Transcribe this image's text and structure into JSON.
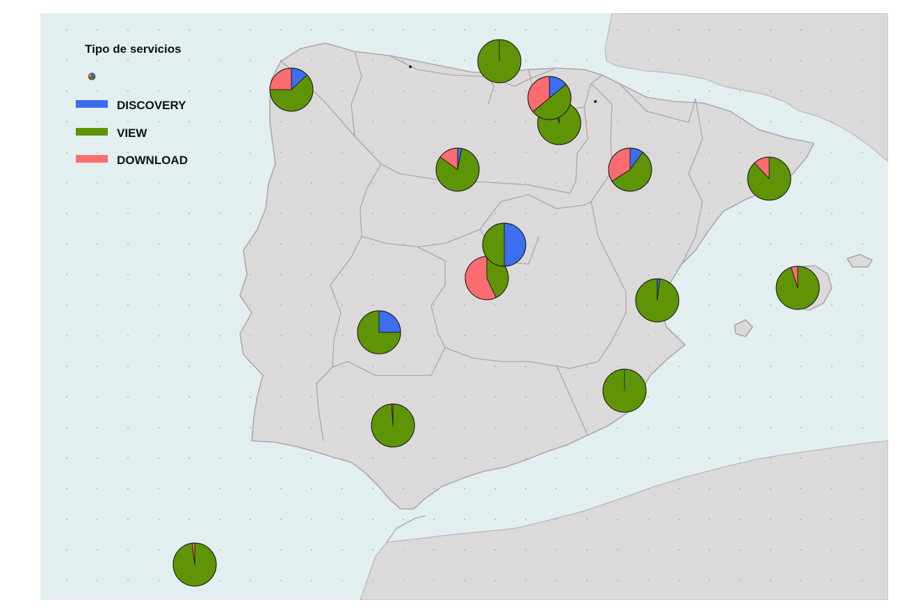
{
  "legend": {
    "title": "Tipo de servicios",
    "items": [
      {
        "label": "DISCOVERY",
        "color": "#3d6ef0"
      },
      {
        "label": "VIEW",
        "color": "#5f9407"
      },
      {
        "label": "DOWNLOAD",
        "color": "#fb6c70"
      }
    ]
  },
  "colors": {
    "sea": "#e2eeef",
    "land": "#dcd9da",
    "border": "#a7a7a9",
    "DISCOVERY": "#3d6ef0",
    "VIEW": "#5f9407",
    "DOWNLOAD": "#fb6c70"
  },
  "chart_data": {
    "type": "pie",
    "series_order": [
      "DISCOVERY",
      "VIEW",
      "DOWNLOAD"
    ],
    "pies": [
      {
        "id": "galicia",
        "shares": [
          0.13,
          0.62,
          0.25
        ]
      },
      {
        "id": "asturias",
        "shares": [
          0.0,
          1.0,
          0.0
        ]
      },
      {
        "id": "pais-vasco",
        "shares": [
          0.14,
          0.5,
          0.36
        ]
      },
      {
        "id": "navarra-rioja",
        "shares": [
          0.0,
          0.96,
          0.04
        ]
      },
      {
        "id": "castilla-leon",
        "shares": [
          0.03,
          0.82,
          0.15
        ]
      },
      {
        "id": "aragon",
        "shares": [
          0.1,
          0.56,
          0.34
        ]
      },
      {
        "id": "cataluna",
        "shares": [
          0.0,
          0.88,
          0.12
        ]
      },
      {
        "id": "madrid",
        "shares": [
          0.5,
          0.5,
          0.0
        ]
      },
      {
        "id": "castilla-la-mancha",
        "shares": [
          0.0,
          0.43,
          0.57
        ]
      },
      {
        "id": "extremadura",
        "shares": [
          0.25,
          0.75,
          0.0
        ]
      },
      {
        "id": "comunidad-valenciana",
        "shares": [
          0.02,
          0.98,
          0.0
        ]
      },
      {
        "id": "baleares",
        "shares": [
          0.0,
          0.95,
          0.05
        ]
      },
      {
        "id": "murcia",
        "shares": [
          0.0,
          1.0,
          0.0
        ]
      },
      {
        "id": "andalucia",
        "shares": [
          0.0,
          0.99,
          0.01
        ]
      },
      {
        "id": "canarias",
        "shares": [
          0.0,
          0.98,
          0.02
        ]
      }
    ]
  }
}
